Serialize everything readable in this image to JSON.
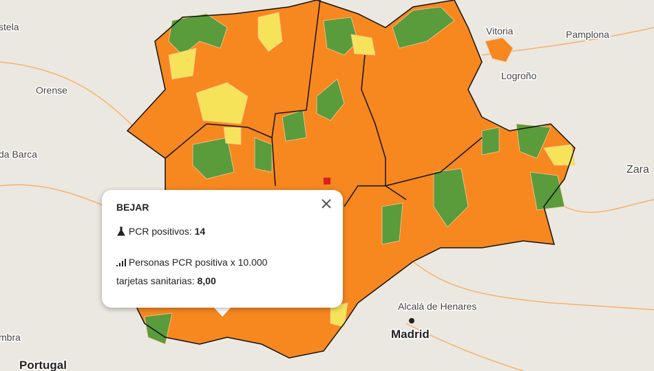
{
  "map_labels": [
    "stela",
    "Vitoria",
    "Pamplona",
    "Logroño",
    "Orense",
    "da Barca",
    "Zara",
    "Alcalá de Henares",
    "Madrid",
    "Portugal",
    "mbra"
  ],
  "popup": {
    "title": "BEJAR",
    "pcr_label": "PCR positivos:",
    "pcr_value": 14,
    "rate_label_line1": "Personas PCR positiva x 10.000",
    "rate_label_line2": "tarjetas sanitarias:",
    "rate_value": "8,00"
  }
}
